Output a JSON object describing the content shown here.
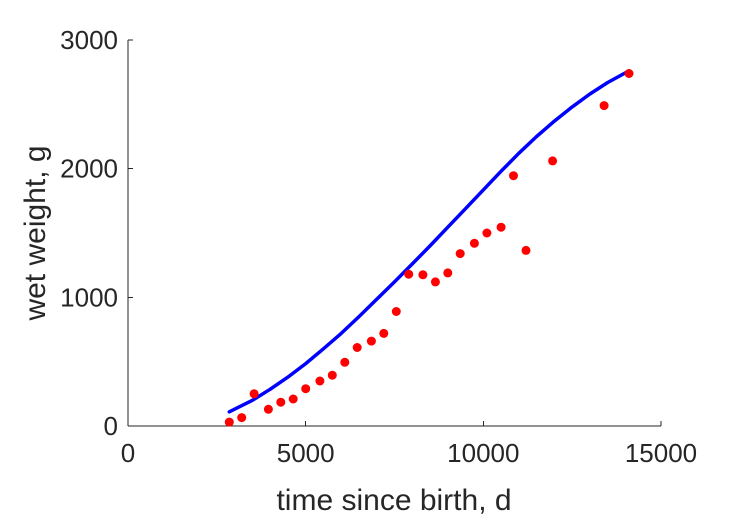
{
  "chart_data": {
    "type": "scatter",
    "title": "",
    "xlabel": "time since birth, d",
    "ylabel": "wet weight, g",
    "xlim": [
      0,
      15000
    ],
    "ylim": [
      0,
      3000
    ],
    "xticks": [
      0,
      5000,
      10000,
      15000
    ],
    "yticks": [
      0,
      1000,
      2000,
      3000
    ],
    "xtick_labels": [
      "0",
      "5000",
      "10000",
      "15000"
    ],
    "ytick_labels": [
      "0",
      "1000",
      "2000",
      "3000"
    ],
    "grid": false,
    "series": [
      {
        "type": "scatter",
        "color": "#ff0000",
        "points": [
          [
            2850,
            30
          ],
          [
            3200,
            65
          ],
          [
            3550,
            250
          ],
          [
            3950,
            130
          ],
          [
            4300,
            185
          ],
          [
            4650,
            210
          ],
          [
            5000,
            290
          ],
          [
            5400,
            350
          ],
          [
            5750,
            395
          ],
          [
            6100,
            495
          ],
          [
            6450,
            610
          ],
          [
            6850,
            660
          ],
          [
            7200,
            720
          ],
          [
            7550,
            890
          ],
          [
            7900,
            1180
          ],
          [
            8300,
            1175
          ],
          [
            8650,
            1120
          ],
          [
            9000,
            1190
          ],
          [
            9350,
            1340
          ],
          [
            9750,
            1420
          ],
          [
            10100,
            1500
          ],
          [
            10500,
            1545
          ],
          [
            10850,
            1945
          ],
          [
            11200,
            1365
          ],
          [
            11950,
            2060
          ],
          [
            13400,
            2490
          ],
          [
            14100,
            2740
          ]
        ]
      },
      {
        "type": "line",
        "color": "#0000ff",
        "points": [
          [
            2850,
            110
          ],
          [
            3500,
            200
          ],
          [
            4000,
            285
          ],
          [
            4500,
            380
          ],
          [
            5000,
            485
          ],
          [
            5500,
            600
          ],
          [
            6000,
            720
          ],
          [
            6500,
            850
          ],
          [
            7000,
            985
          ],
          [
            7500,
            1120
          ],
          [
            8000,
            1260
          ],
          [
            8500,
            1400
          ],
          [
            9000,
            1545
          ],
          [
            9500,
            1690
          ],
          [
            10000,
            1835
          ],
          [
            10500,
            1980
          ],
          [
            11000,
            2120
          ],
          [
            11500,
            2250
          ],
          [
            12000,
            2370
          ],
          [
            12500,
            2480
          ],
          [
            13000,
            2580
          ],
          [
            13500,
            2670
          ],
          [
            14100,
            2760
          ]
        ]
      }
    ]
  }
}
